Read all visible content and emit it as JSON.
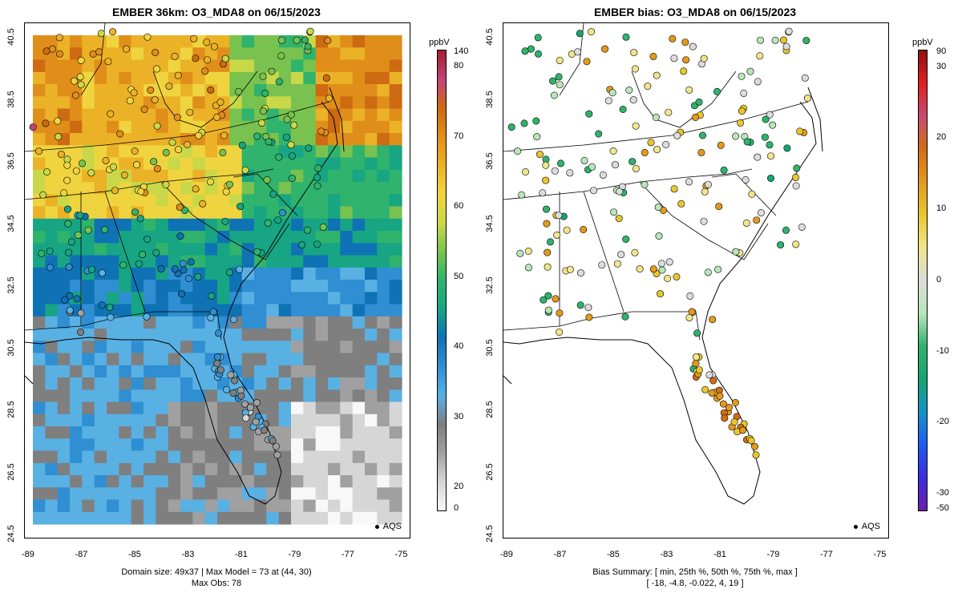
{
  "left_panel": {
    "title": "EMBER 36km: O3_MDA8 on 06/15/2023",
    "footer_line1": "Domain size: 49x37 | Max Model = 73 at (44, 30)",
    "footer_line2": "Max Obs: 78",
    "legend_label": "AQS",
    "colorbar": {
      "unit": "ppbV",
      "ticks": [
        "140",
        "80",
        "70",
        "60",
        "50",
        "40",
        "30",
        "20",
        "0"
      ]
    }
  },
  "right_panel": {
    "title": "EMBER bias: O3_MDA8 on 06/15/2023",
    "footer_line1": "Bias Summary: [ min, 25th %, 50th %, 75th %, max ]",
    "footer_line2": "[ -18,   -4.8,   -0.022,   4,   19 ]",
    "legend_label": "AQS",
    "colorbar": {
      "unit": "ppbV",
      "ticks": [
        "90",
        "30",
        "20",
        "10",
        "0",
        "-10",
        "-20",
        "-30",
        "-50"
      ]
    }
  },
  "axes": {
    "x_ticks": [
      "-89",
      "-87",
      "-85",
      "-83",
      "-81",
      "-79",
      "-77",
      "-75"
    ],
    "y_ticks": [
      "40.5",
      "38.5",
      "36.5",
      "34.5",
      "32.5",
      "30.5",
      "28.5",
      "26.5",
      "24.5"
    ]
  },
  "colors": {
    "ozone_scale": [
      "#f8f8f8",
      "#d6d6d6",
      "#a0a0a0",
      "#7f7f7f",
      "#59b0e3",
      "#2f8fd2",
      "#0f72b5",
      "#17a583",
      "#2fb36d",
      "#79c24f",
      "#c9d848",
      "#f0d43f",
      "#ebb227",
      "#e08e1a",
      "#cd6a12",
      "#c1447a",
      "#a41e2e"
    ],
    "bias_scale": [
      "#6a1fa8",
      "#3b2ee0",
      "#1f5bf0",
      "#1493c9",
      "#16a573",
      "#2fb36d",
      "#b8e6b8",
      "#dcdcdc",
      "#f0e58a",
      "#e8c72e",
      "#e39a1c",
      "#d26d14",
      "#c84c70",
      "#e02020",
      "#8f1010"
    ]
  }
}
